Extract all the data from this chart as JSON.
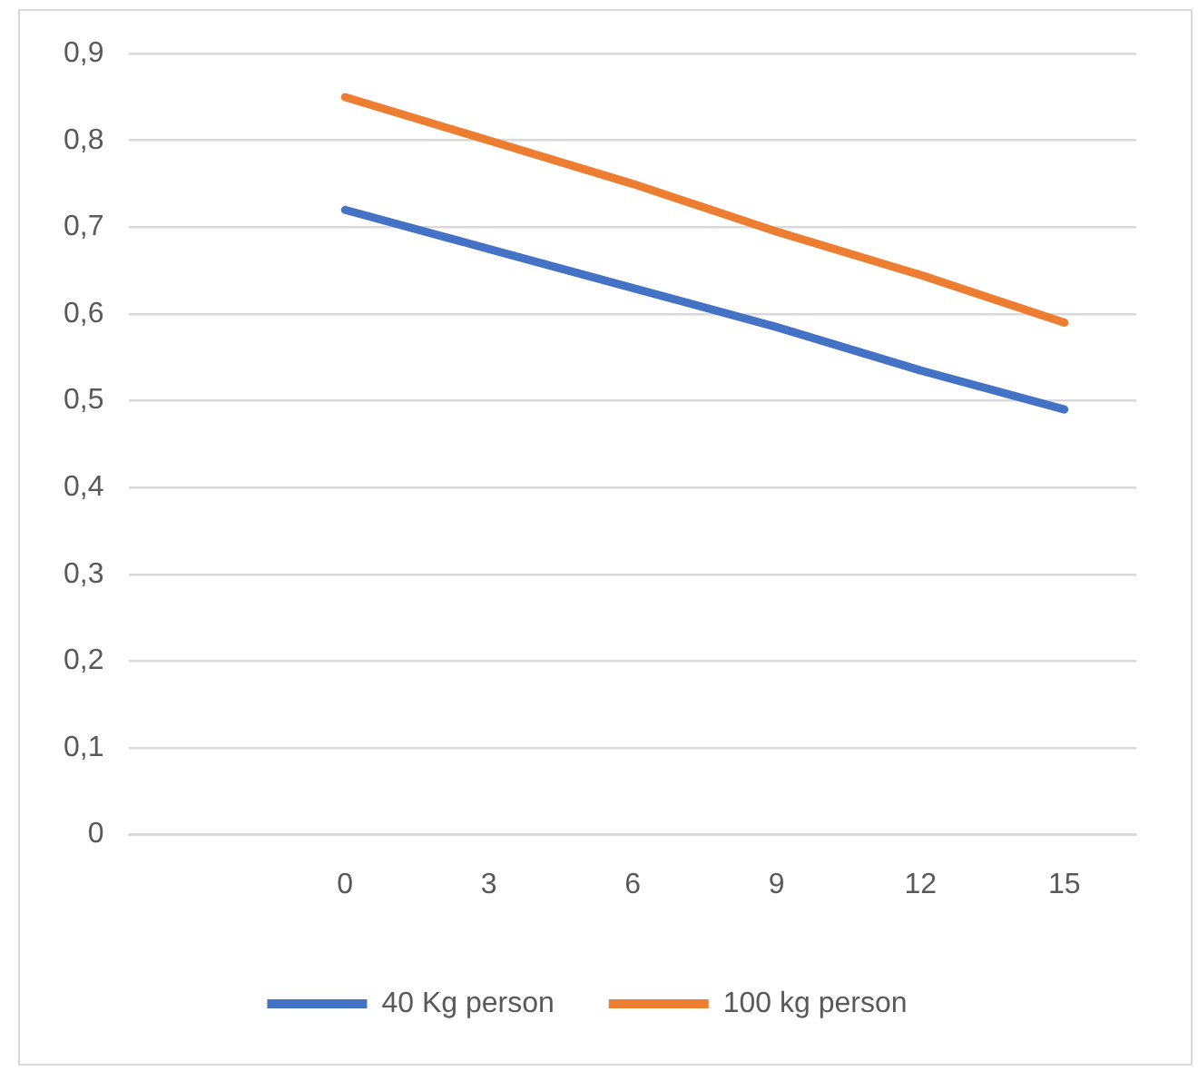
{
  "chart_data": {
    "type": "line",
    "categories": [
      null,
      "0",
      "3",
      "6",
      "9",
      "12",
      "15"
    ],
    "series": [
      {
        "name": "40 Kg person",
        "color": "#4472c4",
        "values": [
          null,
          0.72,
          0.675,
          0.63,
          0.585,
          0.535,
          0.49
        ]
      },
      {
        "name": "100 kg person",
        "color": "#ed7d31",
        "values": [
          null,
          0.85,
          0.8,
          0.75,
          0.695,
          0.645,
          0.59
        ]
      }
    ],
    "ylim": [
      0,
      0.9
    ],
    "yticks": [
      {
        "value": 0,
        "label": "0"
      },
      {
        "value": 0.1,
        "label": "0,1"
      },
      {
        "value": 0.2,
        "label": "0,2"
      },
      {
        "value": 0.3,
        "label": "0,3"
      },
      {
        "value": 0.4,
        "label": "0,4"
      },
      {
        "value": 0.5,
        "label": "0,5"
      },
      {
        "value": 0.6,
        "label": "0,6"
      },
      {
        "value": 0.7,
        "label": "0,7"
      },
      {
        "value": 0.8,
        "label": "0,8"
      },
      {
        "value": 0.9,
        "label": "0,9"
      }
    ],
    "grid": "y",
    "legend": "bottom",
    "marker": "none",
    "line_style": "solid"
  }
}
